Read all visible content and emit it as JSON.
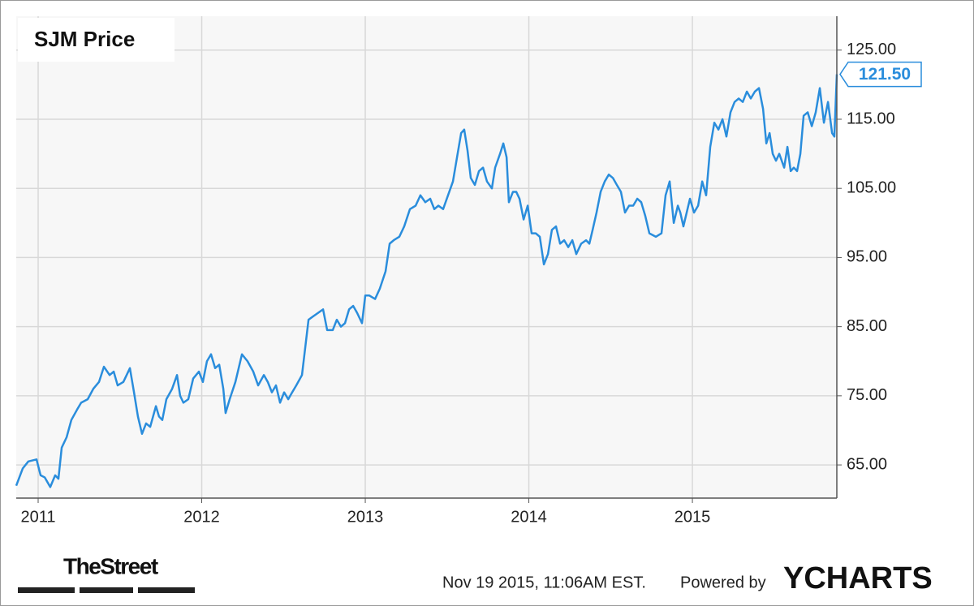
{
  "chart_data": {
    "type": "line",
    "title": "SJM Price",
    "x": [
      2010.866,
      2010.906,
      2010.94,
      2010.99,
      2011.015,
      2011.04,
      2011.074,
      2011.104,
      2011.124,
      2011.144,
      2011.174,
      2011.203,
      2011.238,
      2011.263,
      2011.303,
      2011.337,
      2011.372,
      2011.402,
      2011.437,
      2011.462,
      2011.486,
      2011.521,
      2011.561,
      2011.586,
      2011.61,
      2011.635,
      2011.66,
      2011.685,
      2011.72,
      2011.739,
      2011.759,
      2011.784,
      2011.819,
      2011.849,
      2011.868,
      2011.888,
      2011.918,
      2011.948,
      2011.983,
      2012.007,
      2012.032,
      2012.057,
      2012.082,
      2012.107,
      2012.132,
      2012.146,
      2012.171,
      2012.206,
      2012.246,
      2012.28,
      2012.315,
      2012.345,
      2012.38,
      2012.404,
      2012.429,
      2012.454,
      2012.479,
      2012.504,
      2012.529,
      2012.553,
      2012.578,
      2012.613,
      2012.633,
      2012.653,
      2012.682,
      2012.712,
      2012.742,
      2012.767,
      2012.801,
      2012.826,
      2012.851,
      2012.876,
      2012.901,
      2012.926,
      2012.95,
      2012.98,
      2013.0,
      2013.025,
      2013.06,
      2013.089,
      2013.124,
      2013.149,
      2013.174,
      2013.208,
      2013.238,
      2013.273,
      2013.308,
      2013.337,
      2013.367,
      2013.397,
      2013.422,
      2013.447,
      2013.476,
      2013.506,
      2013.536,
      2013.561,
      2013.586,
      2013.605,
      2013.625,
      2013.645,
      2013.67,
      2013.695,
      2013.72,
      2013.744,
      2013.774,
      2013.794,
      2013.824,
      2013.844,
      2013.864,
      2013.878,
      2013.903,
      2013.923,
      2013.943,
      2013.968,
      2013.993,
      2014.017,
      2014.042,
      2014.067,
      2014.092,
      2014.117,
      2014.141,
      2014.166,
      2014.191,
      2014.216,
      2014.241,
      2014.266,
      2014.29,
      2014.32,
      2014.35,
      2014.37,
      2014.39,
      2014.414,
      2014.439,
      2014.464,
      2014.489,
      2014.514,
      2014.538,
      2014.563,
      2014.588,
      2014.613,
      2014.638,
      2014.663,
      2014.687,
      2014.712,
      2014.737,
      2014.777,
      2014.811,
      2014.836,
      2014.861,
      2014.886,
      2014.911,
      2014.926,
      2014.945,
      2014.965,
      2014.985,
      2015.01,
      2015.035,
      2015.06,
      2015.084,
      2015.109,
      2015.134,
      2015.159,
      2015.184,
      2015.208,
      2015.233,
      2015.258,
      2015.283,
      2015.308,
      2015.333,
      2015.357,
      2015.382,
      2015.407,
      2015.432,
      2015.452,
      2015.472,
      2015.491,
      2015.511,
      2015.531,
      2015.561,
      2015.581,
      2015.601,
      2015.62,
      2015.64,
      2015.66,
      2015.68,
      2015.705,
      2015.73,
      2015.754,
      2015.779,
      2015.804,
      2015.829,
      2015.854,
      2015.868,
      2015.883
    ],
    "series": [
      {
        "name": "SJM Price",
        "color": "#2a8ddc",
        "values": [
          62.0,
          64.5,
          65.5,
          65.8,
          63.5,
          63.2,
          61.8,
          63.5,
          63.0,
          67.5,
          69.0,
          71.5,
          73.0,
          74.0,
          74.5,
          76.0,
          77.0,
          79.2,
          78.0,
          78.5,
          76.5,
          77.0,
          79.0,
          75.5,
          72.0,
          69.5,
          71.0,
          70.5,
          73.5,
          72.0,
          71.5,
          74.5,
          76.0,
          78.0,
          75.0,
          74.0,
          74.5,
          77.5,
          78.5,
          77.0,
          80.0,
          81.0,
          79.0,
          79.5,
          76.0,
          72.5,
          74.5,
          77.0,
          81.0,
          80.0,
          78.5,
          76.5,
          78.0,
          77.0,
          75.5,
          76.5,
          74.0,
          75.5,
          74.5,
          75.5,
          76.5,
          78.0,
          82.0,
          86.0,
          86.5,
          87.0,
          87.5,
          84.5,
          84.5,
          86.0,
          85.0,
          85.5,
          87.5,
          88.0,
          87.0,
          85.5,
          89.5,
          89.5,
          89.0,
          90.5,
          93.0,
          97.0,
          97.5,
          98.0,
          99.5,
          102.0,
          102.5,
          104.0,
          103.0,
          103.5,
          102.0,
          102.5,
          102.0,
          104.0,
          106.0,
          109.5,
          113.0,
          113.5,
          110.5,
          106.5,
          105.5,
          107.5,
          108.0,
          106.0,
          105.0,
          108.0,
          110.0,
          111.5,
          109.5,
          103.0,
          104.5,
          104.5,
          103.5,
          100.5,
          102.5,
          98.5,
          98.5,
          98.0,
          94.0,
          95.5,
          99.0,
          99.5,
          97.0,
          97.5,
          96.5,
          97.5,
          95.5,
          97.0,
          97.5,
          97.0,
          99.0,
          101.5,
          104.5,
          106.0,
          107.0,
          106.5,
          105.5,
          104.5,
          101.5,
          102.5,
          102.5,
          103.5,
          103.0,
          101.0,
          98.5,
          98.0,
          98.5,
          104.0,
          106.0,
          100.0,
          102.5,
          101.5,
          99.5,
          101.5,
          103.5,
          101.5,
          102.5,
          106.0,
          104.0,
          111.0,
          114.5,
          113.5,
          115.0,
          112.5,
          116.0,
          117.5,
          118.0,
          117.5,
          119.0,
          118.0,
          119.0,
          119.5,
          116.5,
          111.5,
          113.0,
          110.0,
          109.0,
          110.0,
          108.0,
          111.0,
          107.5,
          108.0,
          107.5,
          110.0,
          115.5,
          116.0,
          114.0,
          116.0,
          119.5,
          114.5,
          117.5,
          113.0,
          112.5,
          121.5
        ]
      }
    ],
    "last_label": {
      "value": 121.5,
      "label": "121.50"
    },
    "xlim": [
      2010.866,
      2015.883
    ],
    "xticks": [
      2011,
      2012,
      2013,
      2014,
      2015
    ],
    "ylim": [
      60.2,
      129.9
    ],
    "yticks": [
      {
        "value": 65,
        "label": "65.00"
      },
      {
        "value": 75,
        "label": "75.00"
      },
      {
        "value": 85,
        "label": "85.00"
      },
      {
        "value": 95,
        "label": "95.00"
      },
      {
        "value": 105,
        "label": "105.00"
      },
      {
        "value": 115,
        "label": "115.00"
      },
      {
        "value": 125,
        "label": "125.00"
      }
    ],
    "grid": true
  },
  "footer": {
    "logo": "TheStreet",
    "timestamp": "Nov 19 2015, 11:06AM EST.",
    "powered": "Powered by",
    "brand": "YCHARTS"
  }
}
